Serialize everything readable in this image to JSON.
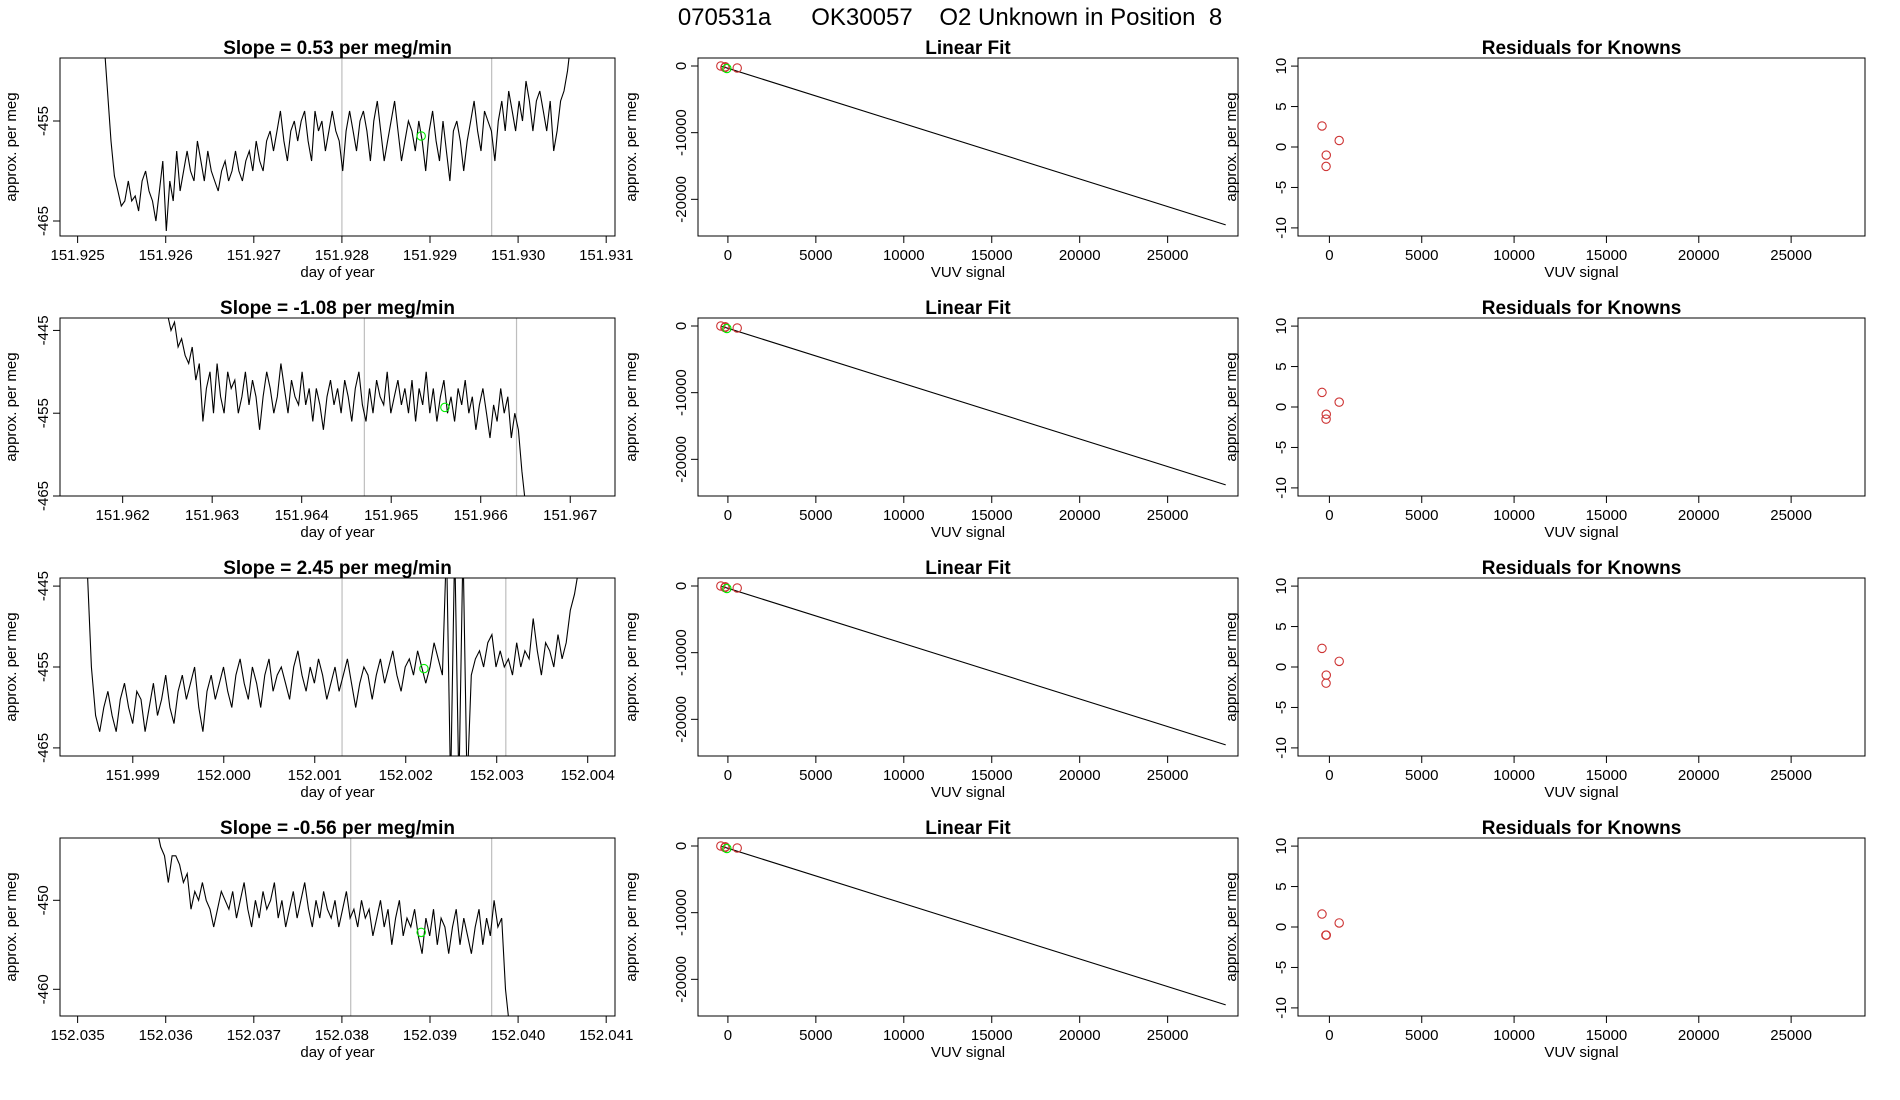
{
  "page_title": "070531a      OK30057    O2 Unknown in Position  8",
  "colors": {
    "trace": "#000000",
    "vline": "#bebebe",
    "known": "#cd3333",
    "unknown": "#00ee00",
    "axis": "#000000"
  },
  "chart_data": [
    {
      "type": "line",
      "title": "Slope =  0.53  per meg/min",
      "xlabel": "day of year",
      "ylabel": "approx. per meg",
      "xlim": [
        151.9248,
        151.9311
      ],
      "ylim": [
        -466.5,
        -448.7
      ],
      "xticks": [
        "151.925",
        "151.926",
        "151.927",
        "151.928",
        "151.929",
        "151.930",
        "151.931"
      ],
      "yticks": [
        "-455",
        "-465"
      ],
      "vlines": [
        151.928,
        151.9297
      ],
      "trace": {
        "x0": 151.9253,
        "x1": 151.9306,
        "y": [
          -447,
          -452,
          -457,
          -460.5,
          -462,
          -463.5,
          -463,
          -461,
          -463,
          -462.5,
          -464,
          -461,
          -460,
          -462,
          -463,
          -465,
          -462,
          -459,
          -466,
          -461,
          -463,
          -458,
          -462,
          -460,
          -458,
          -460,
          -461,
          -457,
          -459,
          -461,
          -458,
          -460,
          -461,
          -462,
          -460,
          -459,
          -461,
          -460,
          -458,
          -460,
          -461,
          -459,
          -458,
          -460,
          -457,
          -459,
          -460,
          -457,
          -456,
          -458,
          -456,
          -454,
          -457,
          -459,
          -456,
          -455,
          -457,
          -455,
          -454,
          -457,
          -459,
          -454,
          -456,
          -455,
          -458,
          -456,
          -454,
          -456,
          -457,
          -460,
          -456,
          -454,
          -456,
          -458,
          -455,
          -454,
          -456,
          -459,
          -455,
          -453,
          -456,
          -459,
          -457,
          -455,
          -453,
          -456,
          -459,
          -457,
          -455,
          -456,
          -458,
          -455,
          -457,
          -460,
          -456,
          -454,
          -457,
          -459,
          -455,
          -458,
          -461,
          -456,
          -455,
          -457,
          -460,
          -457,
          -455,
          -453,
          -456,
          -458,
          -454,
          -455,
          -456,
          -459,
          -455,
          -453,
          -456,
          -452,
          -454,
          -456,
          -453,
          -455,
          -451,
          -453,
          -456,
          -453,
          -452,
          -454,
          -456,
          -453,
          -458,
          -456,
          -453,
          -452,
          -450,
          -447
        ]
      },
      "point": {
        "x": 151.9289,
        "y": -456.5
      }
    },
    {
      "type": "line",
      "title": "Linear Fit",
      "xlabel": "VUV signal",
      "ylabel": "approx. per meg",
      "xlim": [
        -1700,
        29000
      ],
      "ylim": [
        -25500,
        1200
      ],
      "xticks": [
        "0",
        "5000",
        "10000",
        "15000",
        "20000",
        "25000"
      ],
      "yticks": [
        "0",
        "-10000",
        "-20000"
      ],
      "fit": [
        [
          -400,
          -10
        ],
        [
          28300,
          -23830
        ]
      ],
      "knowns": [
        [
          -400,
          0
        ],
        [
          -150,
          -120
        ],
        [
          -170,
          -230
        ],
        [
          530,
          -300
        ]
      ],
      "unknown": [
        [
          -60,
          -380
        ]
      ]
    },
    {
      "type": "scatter",
      "title": "Residuals for Knowns",
      "xlabel": "VUV signal",
      "ylabel": "approx. per meg",
      "xlim": [
        -1700,
        29000
      ],
      "ylim": [
        -11,
        11
      ],
      "xticks": [
        "0",
        "5000",
        "10000",
        "15000",
        "20000",
        "25000"
      ],
      "yticks": [
        "10",
        "5",
        "0",
        "-5",
        "-10"
      ],
      "knowns": [
        [
          -400,
          2.6
        ],
        [
          -170,
          -1
        ],
        [
          -180,
          -2.4
        ],
        [
          530,
          0.8
        ]
      ]
    },
    {
      "type": "line",
      "title": "Slope =  -1.08  per meg/min",
      "xlabel": "day of year",
      "ylabel": "approx. per meg",
      "xlim": [
        151.9613,
        151.9675
      ],
      "ylim": [
        -465,
        -443.5
      ],
      "xticks": [
        "151.962",
        "151.963",
        "151.964",
        "151.965",
        "151.966",
        "151.967"
      ],
      "yticks": [
        "-445",
        "-455",
        "-465"
      ],
      "vlines": [
        151.9647,
        151.9664
      ],
      "trace": {
        "x0": 151.9625,
        "x1": 151.9665,
        "y": [
          -443,
          -445,
          -444,
          -447,
          -446,
          -448,
          -449,
          -447,
          -451,
          -449,
          -456,
          -452,
          -450,
          -455,
          -449,
          -453,
          -455,
          -450,
          -452,
          -451,
          -455,
          -453,
          -450,
          -454,
          -451,
          -453,
          -457,
          -453,
          -450,
          -452,
          -455,
          -453,
          -449,
          -452,
          -455,
          -451,
          -453,
          -454,
          -450,
          -454,
          -452,
          -456,
          -452,
          -454,
          -457,
          -453,
          -451,
          -454,
          -452,
          -455,
          -451,
          -453,
          -456,
          -452,
          -450,
          -454,
          -456,
          -452,
          -455,
          -451,
          -453,
          -454,
          -450,
          -455,
          -453,
          -451,
          -454,
          -452,
          -455,
          -451,
          -456,
          -452,
          -454,
          -450,
          -455,
          -452,
          -456,
          -453,
          -451,
          -455,
          -453,
          -456,
          -452,
          -454,
          -451,
          -455,
          -453,
          -457,
          -454,
          -452,
          -455,
          -458,
          -454,
          -456,
          -452,
          -455,
          -453,
          -458,
          -455,
          -457,
          -462,
          -466
        ]
      },
      "point": {
        "x": 151.9656,
        "y": -454.3
      }
    },
    {
      "type": "line",
      "title": "Linear Fit",
      "xlabel": "VUV signal",
      "ylabel": "approx. per meg",
      "xlim": [
        -1700,
        29000
      ],
      "ylim": [
        -25500,
        1200
      ],
      "xticks": [
        "0",
        "5000",
        "10000",
        "15000",
        "20000",
        "25000"
      ],
      "yticks": [
        "0",
        "-10000",
        "-20000"
      ],
      "fit": [
        [
          -400,
          -10
        ],
        [
          28300,
          -23830
        ]
      ],
      "knowns": [
        [
          -400,
          0
        ],
        [
          -150,
          -120
        ],
        [
          -170,
          -230
        ],
        [
          530,
          -300
        ]
      ],
      "unknown": [
        [
          -60,
          -380
        ]
      ]
    },
    {
      "type": "scatter",
      "title": "Residuals for Knowns",
      "xlabel": "VUV signal",
      "ylabel": "approx. per meg",
      "xlim": [
        -1700,
        29000
      ],
      "ylim": [
        -11,
        11
      ],
      "xticks": [
        "0",
        "5000",
        "10000",
        "15000",
        "20000",
        "25000"
      ],
      "yticks": [
        "10",
        "5",
        "0",
        "-5",
        "-10"
      ],
      "knowns": [
        [
          -400,
          1.8
        ],
        [
          -170,
          -0.9
        ],
        [
          -180,
          -1.5
        ],
        [
          530,
          0.6
        ]
      ]
    },
    {
      "type": "line",
      "title": "Slope =  2.45  per meg/min",
      "xlabel": "day of year",
      "ylabel": "approx. per meg",
      "xlim": [
        151.9982,
        152.0043
      ],
      "ylim": [
        -466,
        -444
      ],
      "xticks": [
        "151.999",
        "152.000",
        "152.001",
        "152.002",
        "152.003",
        "152.004"
      ],
      "yticks": [
        "-445",
        "-455",
        "-465"
      ],
      "vlines": [
        152.0013,
        152.0031
      ],
      "trace": {
        "x0": 151.9985,
        "x1": 152.0039,
        "y": [
          -443,
          -455,
          -461,
          -463,
          -460,
          -458,
          -461,
          -463,
          -459,
          -457,
          -460,
          -462,
          -458,
          -459,
          -463,
          -460,
          -457,
          -461,
          -459,
          -456,
          -460,
          -462,
          -458,
          -456,
          -459,
          -457,
          -455,
          -460,
          -463,
          -458,
          -456,
          -459,
          -457,
          -455,
          -458,
          -460,
          -456,
          -454,
          -457,
          -459,
          -455,
          -457,
          -460,
          -456,
          -454,
          -458,
          -456,
          -455,
          -457,
          -459,
          -455,
          -453,
          -456,
          -458,
          -455,
          -457,
          -454,
          -456,
          -459,
          -457,
          -455,
          -458,
          -456,
          -454,
          -457,
          -460,
          -457,
          -455,
          -456,
          -459,
          -456,
          -454,
          -457,
          -455,
          -453,
          -456,
          -458,
          -455,
          -454,
          -456,
          -453,
          -455,
          -457,
          -455,
          -452,
          -454,
          -456,
          -440,
          -470,
          -440,
          -470,
          -440,
          -470,
          -456,
          -454,
          -453,
          -455,
          -452,
          -451,
          -455,
          -453,
          -455,
          -454,
          -456,
          -452,
          -455,
          -453,
          -454,
          -449,
          -453,
          -456,
          -452,
          -453,
          -455,
          -451,
          -454,
          -452,
          -448,
          -446,
          -443
        ]
      },
      "point": {
        "x": 152.0022,
        "y": -455.2
      }
    },
    {
      "type": "line",
      "title": "Linear Fit",
      "xlabel": "VUV signal",
      "ylabel": "approx. per meg",
      "xlim": [
        -1700,
        29000
      ],
      "ylim": [
        -25500,
        1200
      ],
      "xticks": [
        "0",
        "5000",
        "10000",
        "15000",
        "20000",
        "25000"
      ],
      "yticks": [
        "0",
        "-10000",
        "-20000"
      ],
      "fit": [
        [
          -400,
          -10
        ],
        [
          28300,
          -23830
        ]
      ],
      "knowns": [
        [
          -400,
          0
        ],
        [
          -150,
          -120
        ],
        [
          -170,
          -230
        ],
        [
          530,
          -300
        ]
      ],
      "unknown": [
        [
          -60,
          -380
        ]
      ]
    },
    {
      "type": "scatter",
      "title": "Residuals for Knowns",
      "xlabel": "VUV signal",
      "ylabel": "approx. per meg",
      "xlim": [
        -1700,
        29000
      ],
      "ylim": [
        -11,
        11
      ],
      "xticks": [
        "0",
        "5000",
        "10000",
        "15000",
        "20000",
        "25000"
      ],
      "yticks": [
        "10",
        "5",
        "0",
        "-5",
        "-10"
      ],
      "knowns": [
        [
          -400,
          2.3
        ],
        [
          -170,
          -1
        ],
        [
          -180,
          -2
        ],
        [
          530,
          0.7
        ]
      ]
    },
    {
      "type": "line",
      "title": "Slope =  -0.56  per meg/min",
      "xlabel": "day of year",
      "ylabel": "approx. per meg",
      "xlim": [
        152.0348,
        152.0411
      ],
      "ylim": [
        -463,
        -443
      ],
      "xticks": [
        "152.035",
        "152.036",
        "152.037",
        "152.038",
        "152.039",
        "152.040",
        "152.041"
      ],
      "yticks": [
        "-450",
        "-460"
      ],
      "vlines": [
        152.0381,
        152.0397
      ],
      "trace": {
        "x0": 152.0359,
        "x1": 152.0399,
        "y": [
          -442,
          -444,
          -445,
          -448,
          -445,
          -445,
          -446,
          -448,
          -447,
          -451,
          -449,
          -450,
          -448,
          -450,
          -451,
          -453,
          -451,
          -449,
          -450,
          -451,
          -449,
          -452,
          -450,
          -448,
          -451,
          -453,
          -450,
          -452,
          -449,
          -451,
          -450,
          -448,
          -452,
          -450,
          -453,
          -451,
          -449,
          -452,
          -450,
          -448,
          -451,
          -453,
          -450,
          -452,
          -449,
          -451,
          -452,
          -450,
          -453,
          -451,
          -449,
          -452,
          -451,
          -453,
          -450,
          -452,
          -451,
          -454,
          -452,
          -450,
          -453,
          -451,
          -455,
          -452,
          -450,
          -454,
          -452,
          -453,
          -451,
          -454,
          -456,
          -452,
          -454,
          -451,
          -455,
          -452,
          -453,
          -456,
          -453,
          -451,
          -455,
          -452,
          -454,
          -456,
          -453,
          -451,
          -455,
          -452,
          -454,
          -450,
          -453,
          -452,
          -460,
          -464
        ]
      },
      "point": {
        "x": 152.0389,
        "y": -453.6
      }
    },
    {
      "type": "line",
      "title": "Linear Fit",
      "xlabel": "VUV signal",
      "ylabel": "approx. per meg",
      "xlim": [
        -1700,
        29000
      ],
      "ylim": [
        -25500,
        1200
      ],
      "xticks": [
        "0",
        "5000",
        "10000",
        "15000",
        "20000",
        "25000"
      ],
      "yticks": [
        "0",
        "-10000",
        "-20000"
      ],
      "fit": [
        [
          -400,
          -10
        ],
        [
          28300,
          -23830
        ]
      ],
      "knowns": [
        [
          -400,
          0
        ],
        [
          -150,
          -120
        ],
        [
          -170,
          -230
        ],
        [
          530,
          -300
        ]
      ],
      "unknown": [
        [
          -60,
          -380
        ]
      ]
    },
    {
      "type": "scatter",
      "title": "Residuals for Knowns",
      "xlabel": "VUV signal",
      "ylabel": "approx. per meg",
      "xlim": [
        -1700,
        29000
      ],
      "ylim": [
        -11,
        11
      ],
      "xticks": [
        "0",
        "5000",
        "10000",
        "15000",
        "20000",
        "25000"
      ],
      "yticks": [
        "10",
        "5",
        "0",
        "-5",
        "-10"
      ],
      "knowns": [
        [
          -400,
          1.6
        ],
        [
          -170,
          -1
        ],
        [
          -190,
          -1
        ],
        [
          530,
          0.5
        ]
      ]
    }
  ]
}
